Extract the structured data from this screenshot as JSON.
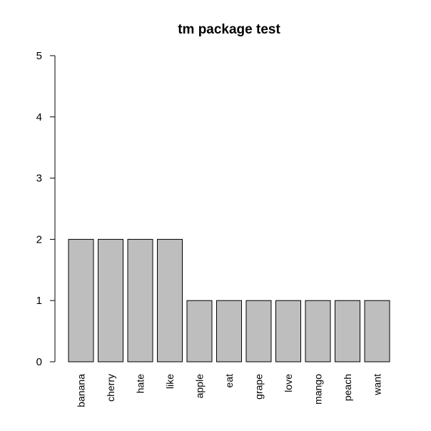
{
  "chart_data": {
    "type": "bar",
    "title": "tm package test",
    "xlabel": "",
    "ylabel": "",
    "categories": [
      "banana",
      "cherry",
      "hate",
      "like",
      "apple",
      "eat",
      "grape",
      "love",
      "mango",
      "peach",
      "want"
    ],
    "values": [
      2,
      2,
      2,
      2,
      1,
      1,
      1,
      1,
      1,
      1,
      1
    ],
    "ylim": [
      0,
      5
    ],
    "yticks": [
      "0",
      "1",
      "2",
      "3",
      "4",
      "5"
    ],
    "grid": false,
    "legend": "none",
    "bar_color": "#bebebe",
    "border_color": "#000000"
  }
}
